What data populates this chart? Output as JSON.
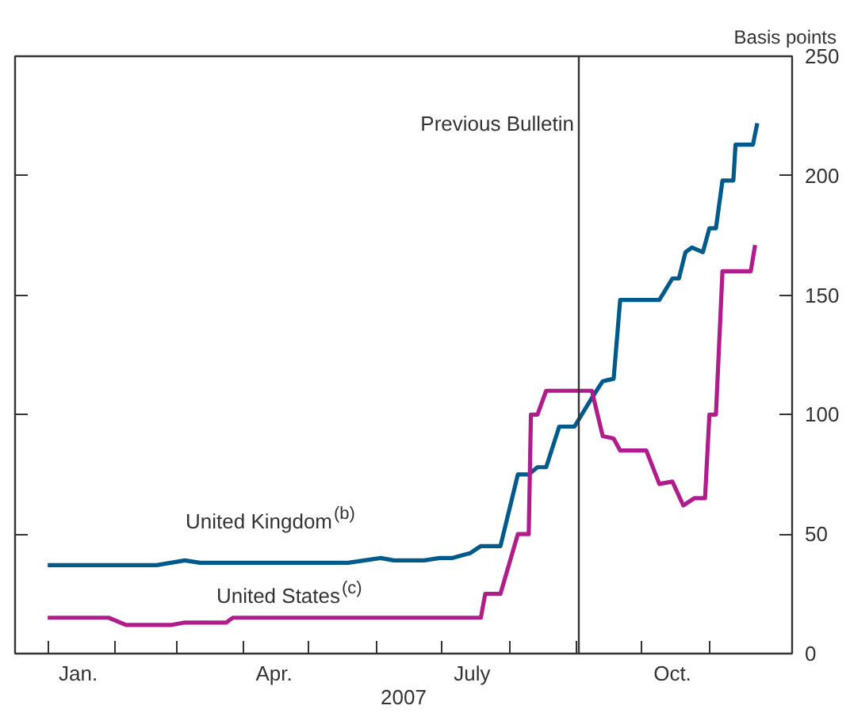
{
  "chart_data": {
    "type": "line",
    "ylabel": "Basis points",
    "xlabel": "2007",
    "xlim": [
      "2006-12-17",
      "2007-12-09"
    ],
    "xticks": [
      {
        "value": "2007-01-15",
        "label": "Jan."
      },
      {
        "value": "2007-04-15",
        "label": "Apr."
      },
      {
        "value": "2007-07-15",
        "label": "July"
      },
      {
        "value": "2007-10-15",
        "label": "Oct."
      },
      {
        "value": "2007-01-01",
        "label": null
      },
      {
        "value": "2007-02-01",
        "label": null
      },
      {
        "value": "2007-03-01",
        "label": null
      },
      {
        "value": "2007-04-01",
        "label": null
      },
      {
        "value": "2007-05-01",
        "label": null
      },
      {
        "value": "2007-06-01",
        "label": null
      },
      {
        "value": "2007-07-01",
        "label": null
      },
      {
        "value": "2007-08-01",
        "label": null
      },
      {
        "value": "2007-09-01",
        "label": null
      },
      {
        "value": "2007-10-01",
        "label": null
      },
      {
        "value": "2007-11-01",
        "label": null
      }
    ],
    "ylim": [
      0,
      250
    ],
    "yticks": [
      0,
      50,
      100,
      150,
      200,
      250
    ],
    "grid": false,
    "marker": "none",
    "line_style": "solid",
    "ref_lines": [
      {
        "axis": "x",
        "value": "2007-09-02",
        "label": "Previous Bulletin",
        "color": "#333333"
      }
    ],
    "series": [
      {
        "name": "United Kingdom$^{(b)}$",
        "color": "#005a8c",
        "x": [
          "2007-01-01",
          "2007-02-20",
          "2007-03-05",
          "2007-03-12",
          "2007-05-19",
          "2007-06-03",
          "2007-06-09",
          "2007-06-23",
          "2007-06-30",
          "2007-07-06",
          "2007-07-14",
          "2007-07-19",
          "2007-07-28",
          "2007-08-05",
          "2007-08-10",
          "2007-08-14",
          "2007-08-18",
          "2007-08-24",
          "2007-08-31",
          "2007-09-08",
          "2007-09-13",
          "2007-09-18",
          "2007-09-21",
          "2007-10-09",
          "2007-10-15",
          "2007-10-18",
          "2007-10-21",
          "2007-10-24",
          "2007-10-29",
          "2007-11-01",
          "2007-11-04",
          "2007-11-07",
          "2007-11-12",
          "2007-11-13",
          "2007-11-21",
          "2007-11-23"
        ],
        "values": [
          37,
          37,
          39,
          38,
          38,
          40,
          39,
          39,
          40,
          40,
          42,
          45,
          45,
          75,
          75,
          78,
          78,
          95,
          95,
          107,
          114,
          115,
          148,
          148,
          157,
          157,
          168,
          170,
          168,
          178,
          178,
          198,
          198,
          213,
          213,
          222
        ]
      },
      {
        "name": "United States$^{(c)}$",
        "color": "#b01c8c",
        "x": [
          "2007-01-01",
          "2007-01-29",
          "2007-02-06",
          "2007-02-27",
          "2007-03-05",
          "2007-03-24",
          "2007-03-27",
          "2007-07-19",
          "2007-07-21",
          "2007-07-28",
          "2007-08-05",
          "2007-08-10",
          "2007-08-11",
          "2007-08-14",
          "2007-08-18",
          "2007-09-08",
          "2007-09-13",
          "2007-09-18",
          "2007-09-21",
          "2007-10-03",
          "2007-10-09",
          "2007-10-15",
          "2007-10-20",
          "2007-10-25",
          "2007-10-30",
          "2007-11-01",
          "2007-11-04",
          "2007-11-07",
          "2007-11-20",
          "2007-11-22"
        ],
        "values": [
          15,
          15,
          12,
          12,
          13,
          13,
          15,
          15,
          25,
          25,
          50,
          50,
          100,
          100,
          110,
          110,
          91,
          90,
          85,
          85,
          71,
          72,
          62,
          65,
          65,
          100,
          100,
          160,
          160,
          171
        ]
      }
    ]
  }
}
